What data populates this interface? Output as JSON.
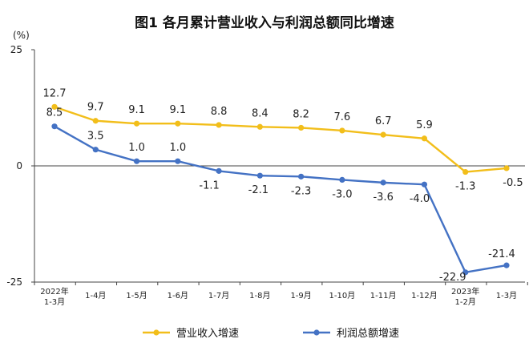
{
  "chart_data": {
    "type": "line",
    "title": "图1  各月累计营业收入与利润总额同比增速",
    "ylabel": "(%)",
    "ylim": [
      -25,
      25
    ],
    "yticks": [
      "25",
      "0",
      "-25"
    ],
    "categories": [
      [
        "2022年",
        "1-3月"
      ],
      [
        "1-4月"
      ],
      [
        "1-5月"
      ],
      [
        "1-6月"
      ],
      [
        "1-7月"
      ],
      [
        "1-8月"
      ],
      [
        "1-9月"
      ],
      [
        "1-10月"
      ],
      [
        "1-11月"
      ],
      [
        "1-12月"
      ],
      [
        "2023年",
        "1-2月"
      ],
      [
        "1-3月"
      ]
    ],
    "series": [
      {
        "name": "营业收入增速",
        "color": "#F2BE1A",
        "values": [
          12.7,
          9.7,
          9.1,
          9.1,
          8.8,
          8.4,
          8.2,
          7.6,
          6.7,
          5.9,
          -1.3,
          -0.5
        ],
        "labels": [
          "12.7",
          "9.7",
          "9.1",
          "9.1",
          "8.8",
          "8.4",
          "8.2",
          "7.6",
          "6.7",
          "5.9",
          "-1.3",
          "-0.5"
        ]
      },
      {
        "name": "利润总额增速",
        "color": "#4472C4",
        "values": [
          8.5,
          3.5,
          1.0,
          1.0,
          -1.1,
          -2.1,
          -2.3,
          -3.0,
          -3.6,
          -4.0,
          -22.9,
          -21.4
        ],
        "labels": [
          "8.5",
          "3.5",
          "1.0",
          "1.0",
          "-1.1",
          "-2.1",
          "-2.3",
          "-3.0",
          "-3.6",
          "-4.0",
          "-22.9",
          "-21.4"
        ]
      }
    ],
    "grid": false,
    "legend_position": "bottom"
  }
}
